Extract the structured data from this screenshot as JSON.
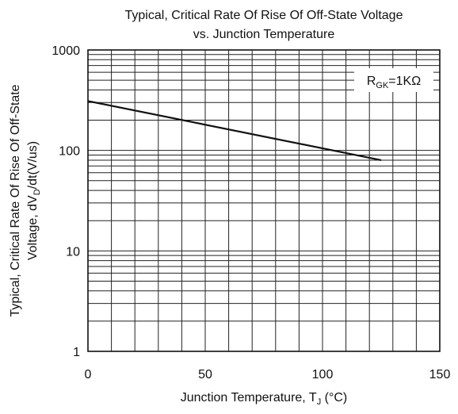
{
  "chart_data": {
    "type": "line",
    "title_lines": [
      "Typical, Critical Rate Of Rise Of Off-State Voltage",
      "vs. Junction Temperature"
    ],
    "xlabel": {
      "main": "Junction Temperature, T",
      "sub": "J",
      "unit": " (°C)"
    },
    "ylabel": {
      "line1": "Typical, Critical Rate Of Rise Of Off-State",
      "line2_prefix": "Voltage, dV",
      "line2_sub": "D",
      "line2_suffix": "/dt(V/us)"
    },
    "xlim": [
      0,
      150
    ],
    "ylim": [
      1,
      1000
    ],
    "yscale": "log",
    "grid": true,
    "x_ticks": [
      0,
      50,
      100,
      150
    ],
    "x_tick_labels": [
      "0",
      "50",
      "100",
      "150"
    ],
    "y_ticks": [
      1,
      10,
      100,
      1000
    ],
    "y_tick_labels": [
      "1",
      "10",
      "100",
      "1000"
    ],
    "x_grid_step": 10,
    "annotation": {
      "text": "R",
      "sub": "GK",
      "rest": "=1KΩ",
      "placement": "top-right"
    },
    "series": [
      {
        "x": [
          0,
          125
        ],
        "y": [
          310,
          80
        ]
      }
    ]
  }
}
